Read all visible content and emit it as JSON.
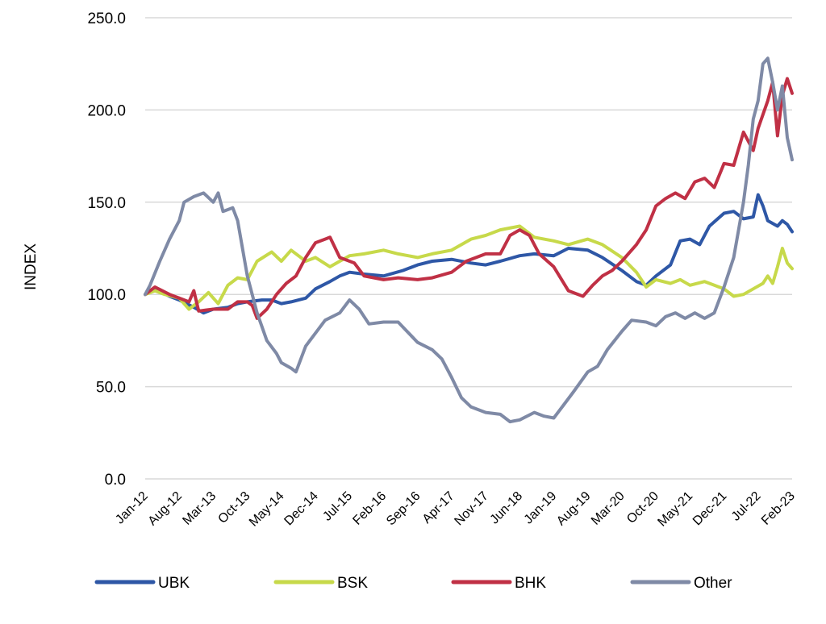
{
  "chart_data": {
    "type": "line",
    "title": "",
    "xlabel": "",
    "ylabel": "INDEX",
    "ylim": [
      0,
      250
    ],
    "yticks": [
      "0.0",
      "50.0",
      "100.0",
      "150.0",
      "200.0",
      "250.0"
    ],
    "grid": true,
    "legend": "bottom",
    "x_ticks": [
      "Jan-12",
      "Aug-12",
      "Mar-13",
      "Oct-13",
      "May-14",
      "Dec-14",
      "Jul-15",
      "Feb-16",
      "Sep-16",
      "Apr-17",
      "Nov-17",
      "Jun-18",
      "Jan-19",
      "Aug-19",
      "Mar-20",
      "Oct-20",
      "May-21",
      "Dec-21",
      "Jul-22",
      "Feb-23"
    ],
    "series": [
      {
        "name": "UBK",
        "color": "#2e57a6",
        "points": [
          [
            "Jan-12",
            100
          ],
          [
            "Mar-12",
            103
          ],
          [
            "Jun-12",
            99
          ],
          [
            "Aug-12",
            97
          ],
          [
            "Nov-12",
            93
          ],
          [
            "Jan-13",
            90
          ],
          [
            "Mar-13",
            92
          ],
          [
            "Jun-13",
            93
          ],
          [
            "Aug-13",
            95
          ],
          [
            "Oct-13",
            96
          ],
          [
            "Jan-14",
            97
          ],
          [
            "Mar-14",
            97
          ],
          [
            "May-14",
            95
          ],
          [
            "Jul-14",
            96
          ],
          [
            "Oct-14",
            98
          ],
          [
            "Dec-14",
            103
          ],
          [
            "Mar-15",
            107
          ],
          [
            "May-15",
            110
          ],
          [
            "Jul-15",
            112
          ],
          [
            "Oct-15",
            111
          ],
          [
            "Feb-16",
            110
          ],
          [
            "Jun-16",
            113
          ],
          [
            "Sep-16",
            116
          ],
          [
            "Dec-16",
            118
          ],
          [
            "Apr-17",
            119
          ],
          [
            "Aug-17",
            117
          ],
          [
            "Nov-17",
            116
          ],
          [
            "Feb-18",
            118
          ],
          [
            "Jun-18",
            121
          ],
          [
            "Sep-18",
            122
          ],
          [
            "Jan-19",
            121
          ],
          [
            "Apr-19",
            125
          ],
          [
            "Aug-19",
            124
          ],
          [
            "Nov-19",
            120
          ],
          [
            "Mar-20",
            113
          ],
          [
            "Jun-20",
            107
          ],
          [
            "Aug-20",
            105
          ],
          [
            "Oct-20",
            110
          ],
          [
            "Jan-21",
            116
          ],
          [
            "Mar-21",
            129
          ],
          [
            "May-21",
            130
          ],
          [
            "Jul-21",
            127
          ],
          [
            "Sep-21",
            137
          ],
          [
            "Dec-21",
            144
          ],
          [
            "Feb-22",
            145
          ],
          [
            "Apr-22",
            141
          ],
          [
            "Jun-22",
            142
          ],
          [
            "Jul-22",
            154
          ],
          [
            "Aug-22",
            148
          ],
          [
            "Sep-22",
            140
          ],
          [
            "Nov-22",
            137
          ],
          [
            "Dec-22",
            140
          ],
          [
            "Jan-23",
            138
          ],
          [
            "Feb-23",
            134
          ]
        ]
      },
      {
        "name": "BSK",
        "color": "#c7d94a",
        "points": [
          [
            "Jan-12",
            100
          ],
          [
            "Mar-12",
            102
          ],
          [
            "May-12",
            100
          ],
          [
            "Aug-12",
            98
          ],
          [
            "Oct-12",
            92
          ],
          [
            "Dec-12",
            96
          ],
          [
            "Feb-13",
            101
          ],
          [
            "Apr-13",
            95
          ],
          [
            "Jun-13",
            105
          ],
          [
            "Aug-13",
            109
          ],
          [
            "Oct-13",
            108
          ],
          [
            "Dec-13",
            118
          ],
          [
            "Mar-14",
            123
          ],
          [
            "May-14",
            118
          ],
          [
            "Jul-14",
            124
          ],
          [
            "Oct-14",
            118
          ],
          [
            "Dec-14",
            120
          ],
          [
            "Mar-15",
            115
          ],
          [
            "May-15",
            118
          ],
          [
            "Jul-15",
            121
          ],
          [
            "Oct-15",
            122
          ],
          [
            "Feb-16",
            124
          ],
          [
            "May-16",
            122
          ],
          [
            "Sep-16",
            120
          ],
          [
            "Dec-16",
            122
          ],
          [
            "Apr-17",
            124
          ],
          [
            "Aug-17",
            130
          ],
          [
            "Nov-17",
            132
          ],
          [
            "Feb-18",
            135
          ],
          [
            "Jun-18",
            137
          ],
          [
            "Sep-18",
            131
          ],
          [
            "Jan-19",
            129
          ],
          [
            "Apr-19",
            127
          ],
          [
            "Aug-19",
            130
          ],
          [
            "Nov-19",
            127
          ],
          [
            "Mar-20",
            120
          ],
          [
            "Jun-20",
            112
          ],
          [
            "Aug-20",
            104
          ],
          [
            "Oct-20",
            108
          ],
          [
            "Jan-21",
            106
          ],
          [
            "Mar-21",
            108
          ],
          [
            "May-21",
            105
          ],
          [
            "Aug-21",
            107
          ],
          [
            "Oct-21",
            105
          ],
          [
            "Dec-21",
            103
          ],
          [
            "Feb-22",
            99
          ],
          [
            "Apr-22",
            100
          ],
          [
            "Jun-22",
            103
          ],
          [
            "Aug-22",
            106
          ],
          [
            "Sep-22",
            110
          ],
          [
            "Oct-22",
            106
          ],
          [
            "Nov-22",
            115
          ],
          [
            "Dec-22",
            125
          ],
          [
            "Jan-23",
            117
          ],
          [
            "Feb-23",
            114
          ]
        ]
      },
      {
        "name": "BHK",
        "color": "#c03045",
        "points": [
          [
            "Jan-12",
            100
          ],
          [
            "Mar-12",
            104
          ],
          [
            "Jun-12",
            100
          ],
          [
            "Aug-12",
            98
          ],
          [
            "Oct-12",
            96
          ],
          [
            "Nov-12",
            102
          ],
          [
            "Dec-12",
            91
          ],
          [
            "Mar-13",
            92
          ],
          [
            "Jun-13",
            92
          ],
          [
            "Aug-13",
            96
          ],
          [
            "Oct-13",
            96
          ],
          [
            "Nov-13",
            94
          ],
          [
            "Dec-13",
            87
          ],
          [
            "Feb-14",
            92
          ],
          [
            "Apr-14",
            100
          ],
          [
            "Jun-14",
            106
          ],
          [
            "Aug-14",
            110
          ],
          [
            "Oct-14",
            120
          ],
          [
            "Dec-14",
            128
          ],
          [
            "Feb-15",
            130
          ],
          [
            "Mar-15",
            131
          ],
          [
            "May-15",
            120
          ],
          [
            "Aug-15",
            117
          ],
          [
            "Oct-15",
            110
          ],
          [
            "Feb-16",
            108
          ],
          [
            "May-16",
            109
          ],
          [
            "Sep-16",
            108
          ],
          [
            "Dec-16",
            109
          ],
          [
            "Apr-17",
            112
          ],
          [
            "Jul-17",
            118
          ],
          [
            "Nov-17",
            122
          ],
          [
            "Feb-18",
            122
          ],
          [
            "Apr-18",
            132
          ],
          [
            "Jun-18",
            135
          ],
          [
            "Aug-18",
            132
          ],
          [
            "Oct-18",
            122
          ],
          [
            "Jan-19",
            115
          ],
          [
            "Apr-19",
            102
          ],
          [
            "Jul-19",
            99
          ],
          [
            "Sep-19",
            105
          ],
          [
            "Nov-19",
            110
          ],
          [
            "Jan-20",
            113
          ],
          [
            "Mar-20",
            118
          ],
          [
            "Jun-20",
            127
          ],
          [
            "Aug-20",
            135
          ],
          [
            "Oct-20",
            148
          ],
          [
            "Dec-20",
            152
          ],
          [
            "Feb-21",
            155
          ],
          [
            "Apr-21",
            152
          ],
          [
            "Jun-21",
            161
          ],
          [
            "Aug-21",
            163
          ],
          [
            "Oct-21",
            158
          ],
          [
            "Dec-21",
            171
          ],
          [
            "Feb-22",
            170
          ],
          [
            "Apr-22",
            188
          ],
          [
            "Jun-22",
            178
          ],
          [
            "Jul-22",
            190
          ],
          [
            "Sep-22",
            205
          ],
          [
            "Oct-22",
            215
          ],
          [
            "Nov-22",
            186
          ],
          [
            "Dec-22",
            208
          ],
          [
            "Jan-23",
            217
          ],
          [
            "Feb-23",
            209
          ]
        ]
      },
      {
        "name": "Other",
        "color": "#7f8aa6",
        "points": [
          [
            "Jan-12",
            100
          ],
          [
            "Feb-12",
            105
          ],
          [
            "Apr-12",
            118
          ],
          [
            "Jun-12",
            130
          ],
          [
            "Aug-12",
            140
          ],
          [
            "Sep-12",
            150
          ],
          [
            "Nov-12",
            153
          ],
          [
            "Jan-13",
            155
          ],
          [
            "Mar-13",
            150
          ],
          [
            "Apr-13",
            155
          ],
          [
            "May-13",
            145
          ],
          [
            "Jul-13",
            147
          ],
          [
            "Aug-13",
            140
          ],
          [
            "Oct-13",
            110
          ],
          [
            "Dec-13",
            90
          ],
          [
            "Feb-14",
            75
          ],
          [
            "Apr-14",
            68
          ],
          [
            "May-14",
            63
          ],
          [
            "Jul-14",
            60
          ],
          [
            "Aug-14",
            58
          ],
          [
            "Oct-14",
            72
          ],
          [
            "Dec-14",
            79
          ],
          [
            "Feb-15",
            86
          ],
          [
            "May-15",
            90
          ],
          [
            "Jul-15",
            97
          ],
          [
            "Sep-15",
            92
          ],
          [
            "Nov-15",
            84
          ],
          [
            "Feb-16",
            85
          ],
          [
            "May-16",
            85
          ],
          [
            "Sep-16",
            74
          ],
          [
            "Dec-16",
            70
          ],
          [
            "Feb-17",
            65
          ],
          [
            "Apr-17",
            55
          ],
          [
            "Jun-17",
            44
          ],
          [
            "Aug-17",
            39
          ],
          [
            "Nov-17",
            36
          ],
          [
            "Feb-18",
            35
          ],
          [
            "Apr-18",
            31
          ],
          [
            "Jun-18",
            32
          ],
          [
            "Sep-18",
            36
          ],
          [
            "Nov-18",
            34
          ],
          [
            "Jan-19",
            33
          ],
          [
            "Mar-19",
            40
          ],
          [
            "May-19",
            47
          ],
          [
            "Aug-19",
            58
          ],
          [
            "Oct-19",
            61
          ],
          [
            "Dec-19",
            70
          ],
          [
            "Mar-20",
            80
          ],
          [
            "May-20",
            86
          ],
          [
            "Aug-20",
            85
          ],
          [
            "Oct-20",
            83
          ],
          [
            "Dec-20",
            88
          ],
          [
            "Feb-21",
            90
          ],
          [
            "Apr-21",
            87
          ],
          [
            "Jun-21",
            90
          ],
          [
            "Aug-21",
            87
          ],
          [
            "Oct-21",
            90
          ],
          [
            "Dec-21",
            104
          ],
          [
            "Feb-22",
            120
          ],
          [
            "Apr-22",
            150
          ],
          [
            "May-22",
            170
          ],
          [
            "Jun-22",
            195
          ],
          [
            "Jul-22",
            205
          ],
          [
            "Aug-22",
            225
          ],
          [
            "Sep-22",
            228
          ],
          [
            "Oct-22",
            215
          ],
          [
            "Nov-22",
            200
          ],
          [
            "Dec-22",
            213
          ],
          [
            "Jan-23",
            185
          ],
          [
            "Feb-23",
            173
          ]
        ]
      }
    ]
  }
}
